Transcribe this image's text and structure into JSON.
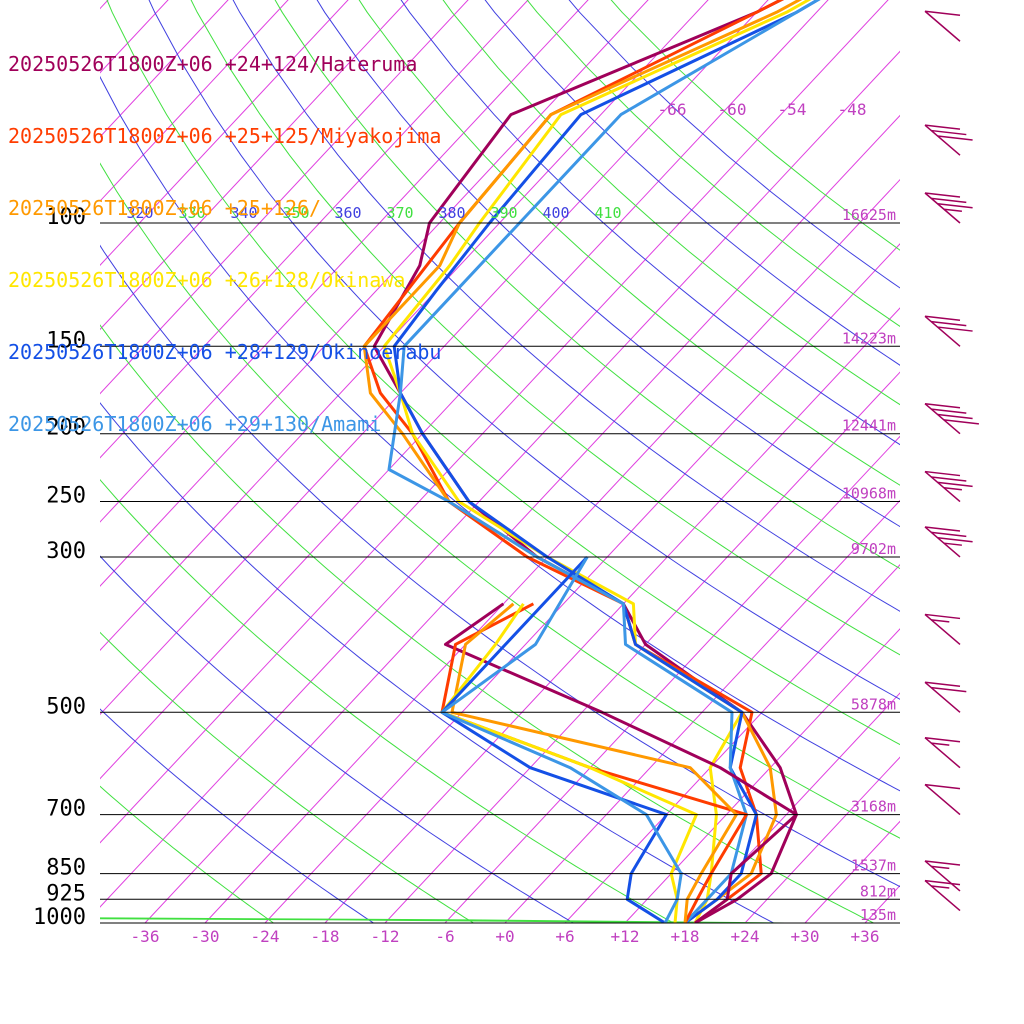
{
  "chart_data": {
    "type": "skew-t",
    "series": [
      {
        "name": "20250526T1800Z+06 +24+124/Hateruma",
        "color": "#a0005a",
        "points": [
          [
            1000,
            19
          ],
          [
            925,
            21
          ],
          [
            850,
            22
          ],
          [
            700,
            19
          ],
          [
            600,
            13
          ],
          [
            500,
            4
          ],
          [
            400,
            -12
          ],
          [
            350,
            -18
          ],
          [
            300,
            -31
          ],
          [
            250,
            -43
          ],
          [
            200,
            -54
          ],
          [
            175,
            -60
          ],
          [
            150,
            -67
          ],
          [
            115,
            -70
          ],
          [
            100,
            -73
          ],
          [
            70,
            -75
          ],
          [
            50,
            -60
          ],
          [
            30,
            -44
          ]
        ]
      },
      {
        "name": "20250526T1800Z+06 +25+125/Miyakojima",
        "color": "#ff3c00",
        "points": [
          [
            1000,
            19
          ],
          [
            925,
            20
          ],
          [
            850,
            21
          ],
          [
            700,
            15
          ],
          [
            600,
            9
          ],
          [
            500,
            5
          ],
          [
            400,
            -13
          ],
          [
            350,
            -18
          ],
          [
            300,
            -32
          ],
          [
            250,
            -45
          ],
          [
            200,
            -55
          ],
          [
            175,
            -62
          ],
          [
            150,
            -68
          ],
          [
            100,
            -70
          ],
          [
            70,
            -71
          ],
          [
            50,
            -60
          ],
          [
            30,
            -44
          ]
        ]
      },
      {
        "name": "20250526T1800Z+06 +25+126/",
        "color": "#ff9900",
        "points": [
          [
            1000,
            18
          ],
          [
            925,
            19
          ],
          [
            850,
            20
          ],
          [
            700,
            17
          ],
          [
            600,
            12
          ],
          [
            500,
            4
          ],
          [
            400,
            -13
          ],
          [
            350,
            -18
          ],
          [
            300,
            -31
          ],
          [
            250,
            -45
          ],
          [
            200,
            -56
          ],
          [
            175,
            -63
          ],
          [
            150,
            -68
          ],
          [
            115,
            -68
          ],
          [
            100,
            -70
          ],
          [
            70,
            -71
          ],
          [
            50,
            -58
          ],
          [
            30,
            -44
          ]
        ]
      },
      {
        "name": "20250526T1800Z+06 +26+128/Okinawa",
        "color": "#ffe600",
        "points": [
          [
            1000,
            19
          ],
          [
            925,
            18
          ],
          [
            850,
            16
          ],
          [
            700,
            11
          ],
          [
            600,
            6
          ],
          [
            500,
            4
          ],
          [
            400,
            -13
          ],
          [
            350,
            -17
          ],
          [
            300,
            -30
          ],
          [
            250,
            -44
          ],
          [
            200,
            -55
          ],
          [
            175,
            -60
          ],
          [
            150,
            -66
          ],
          [
            115,
            -67
          ],
          [
            100,
            -68
          ],
          [
            70,
            -70
          ],
          [
            50,
            -57
          ],
          [
            30,
            -44
          ]
        ]
      },
      {
        "name": "20250526T1800Z+06 +28+129/Okinoerabu",
        "color": "#1450e6",
        "points": [
          [
            1000,
            18
          ],
          [
            925,
            19
          ],
          [
            850,
            19
          ],
          [
            700,
            15
          ],
          [
            600,
            8
          ],
          [
            500,
            4
          ],
          [
            400,
            -13
          ],
          [
            350,
            -18
          ],
          [
            300,
            -30
          ],
          [
            250,
            -43
          ],
          [
            200,
            -54
          ],
          [
            175,
            -60
          ],
          [
            150,
            -65
          ],
          [
            125,
            -66
          ],
          [
            100,
            -67
          ],
          [
            70,
            -68
          ],
          [
            50,
            -56
          ],
          [
            30,
            -44
          ]
        ]
      },
      {
        "name": "20250526T1800Z+06 +29+130/Amami",
        "color": "#3c96e6",
        "points": [
          [
            1000,
            18
          ],
          [
            925,
            18
          ],
          [
            850,
            18
          ],
          [
            700,
            14
          ],
          [
            600,
            8
          ],
          [
            500,
            3
          ],
          [
            400,
            -14
          ],
          [
            350,
            -18
          ],
          [
            300,
            -31
          ],
          [
            250,
            -45
          ],
          [
            225,
            -54
          ],
          [
            175,
            -60
          ],
          [
            150,
            -64
          ],
          [
            125,
            -64
          ],
          [
            100,
            -64
          ],
          [
            70,
            -64
          ],
          [
            50,
            -56
          ],
          [
            30,
            -44
          ]
        ]
      },
      {
        "name": "dew-Hateruma",
        "color": "#a0005a",
        "points": [
          [
            1000,
            19
          ],
          [
            925,
            20
          ],
          [
            850,
            18
          ],
          [
            700,
            19
          ],
          [
            600,
            7
          ],
          [
            500,
            -10
          ],
          [
            400,
            -32
          ],
          [
            350,
            -30
          ]
        ]
      },
      {
        "name": "dew-Miyakojima",
        "color": "#ff3c00",
        "points": [
          [
            1000,
            18
          ],
          [
            925,
            17
          ],
          [
            850,
            16
          ],
          [
            700,
            14
          ],
          [
            600,
            -6
          ],
          [
            500,
            -26
          ],
          [
            400,
            -31
          ],
          [
            350,
            -27
          ]
        ]
      },
      {
        "name": "dew-unnamed",
        "color": "#ff9900",
        "points": [
          [
            1000,
            18
          ],
          [
            925,
            16
          ],
          [
            850,
            15
          ],
          [
            700,
            13
          ],
          [
            600,
            4
          ],
          [
            500,
            -25
          ],
          [
            400,
            -30
          ],
          [
            350,
            -29
          ]
        ]
      },
      {
        "name": "dew-Okinawa",
        "color": "#ffe600",
        "points": [
          [
            1000,
            17
          ],
          [
            925,
            15
          ],
          [
            850,
            12
          ],
          [
            700,
            9
          ],
          [
            600,
            -6
          ],
          [
            500,
            -26
          ],
          [
            400,
            -27
          ],
          [
            350,
            -28
          ]
        ]
      },
      {
        "name": "dew-Okinoerabu",
        "color": "#1450e6",
        "points": [
          [
            1000,
            16
          ],
          [
            925,
            10
          ],
          [
            850,
            8
          ],
          [
            700,
            6
          ],
          [
            600,
            -12
          ],
          [
            500,
            -26
          ],
          [
            400,
            -26
          ],
          [
            300,
            -26
          ]
        ]
      },
      {
        "name": "dew-Amami",
        "color": "#3c96e6",
        "points": [
          [
            1000,
            16
          ],
          [
            925,
            15
          ],
          [
            850,
            13
          ],
          [
            700,
            4
          ],
          [
            600,
            -8
          ],
          [
            500,
            -26
          ],
          [
            400,
            -23
          ],
          [
            300,
            -26
          ]
        ]
      }
    ],
    "pressure_labels": [
      "100",
      "150",
      "200",
      "250",
      "300",
      "500",
      "700",
      "850",
      "925",
      "1000"
    ],
    "pressure_levels": [
      100,
      150,
      200,
      250,
      300,
      500,
      700,
      850,
      925,
      1000
    ],
    "height_labels": [
      "16625m",
      "14223m",
      "12441m",
      "10968m",
      "9702m",
      "5878m",
      "3168m",
      "1537m",
      "812m",
      "135m"
    ],
    "temp_ticks": [
      "-36",
      "-30",
      "-24",
      "-18",
      "-12",
      "-6",
      "+0",
      "+6",
      "+12",
      "+18",
      "+24",
      "+30",
      "+36"
    ],
    "temp_tick_values": [
      -36,
      -30,
      -24,
      -18,
      -12,
      -6,
      0,
      6,
      12,
      18,
      24,
      30,
      36
    ],
    "upper_temp_labels": [
      "-66",
      "-60",
      "-54",
      "-48"
    ],
    "upper_temp_values": [
      -66,
      -60,
      -54,
      -48
    ],
    "theta_labels": [
      "320",
      "330",
      "340",
      "350",
      "360",
      "370",
      "380",
      "390",
      "400",
      "410"
    ],
    "theta_values": [
      320,
      330,
      340,
      350,
      360,
      370,
      380,
      390,
      400,
      410
    ],
    "theta_colors": [
      "#4040e0",
      "#40e040"
    ],
    "wind_barbs": [
      {
        "p": 30,
        "speed": 10
      },
      {
        "p": 55,
        "speed": 10
      },
      {
        "p": 80,
        "speed": 30
      },
      {
        "p": 100,
        "speed": 35
      },
      {
        "p": 150,
        "speed": 30
      },
      {
        "p": 200,
        "speed": 40
      },
      {
        "p": 250,
        "speed": 35
      },
      {
        "p": 300,
        "speed": 35
      },
      {
        "p": 400,
        "speed": 15
      },
      {
        "p": 500,
        "speed": 20
      },
      {
        "p": 600,
        "speed": 15
      },
      {
        "p": 700,
        "speed": 10
      },
      {
        "p": 900,
        "speed": 15
      },
      {
        "p": 960,
        "speed": 15
      }
    ],
    "colors": {
      "grid": "#000000",
      "isotherm": "#e040e0",
      "text_magenta": "#c040c0",
      "barb": "#a0005a"
    }
  }
}
